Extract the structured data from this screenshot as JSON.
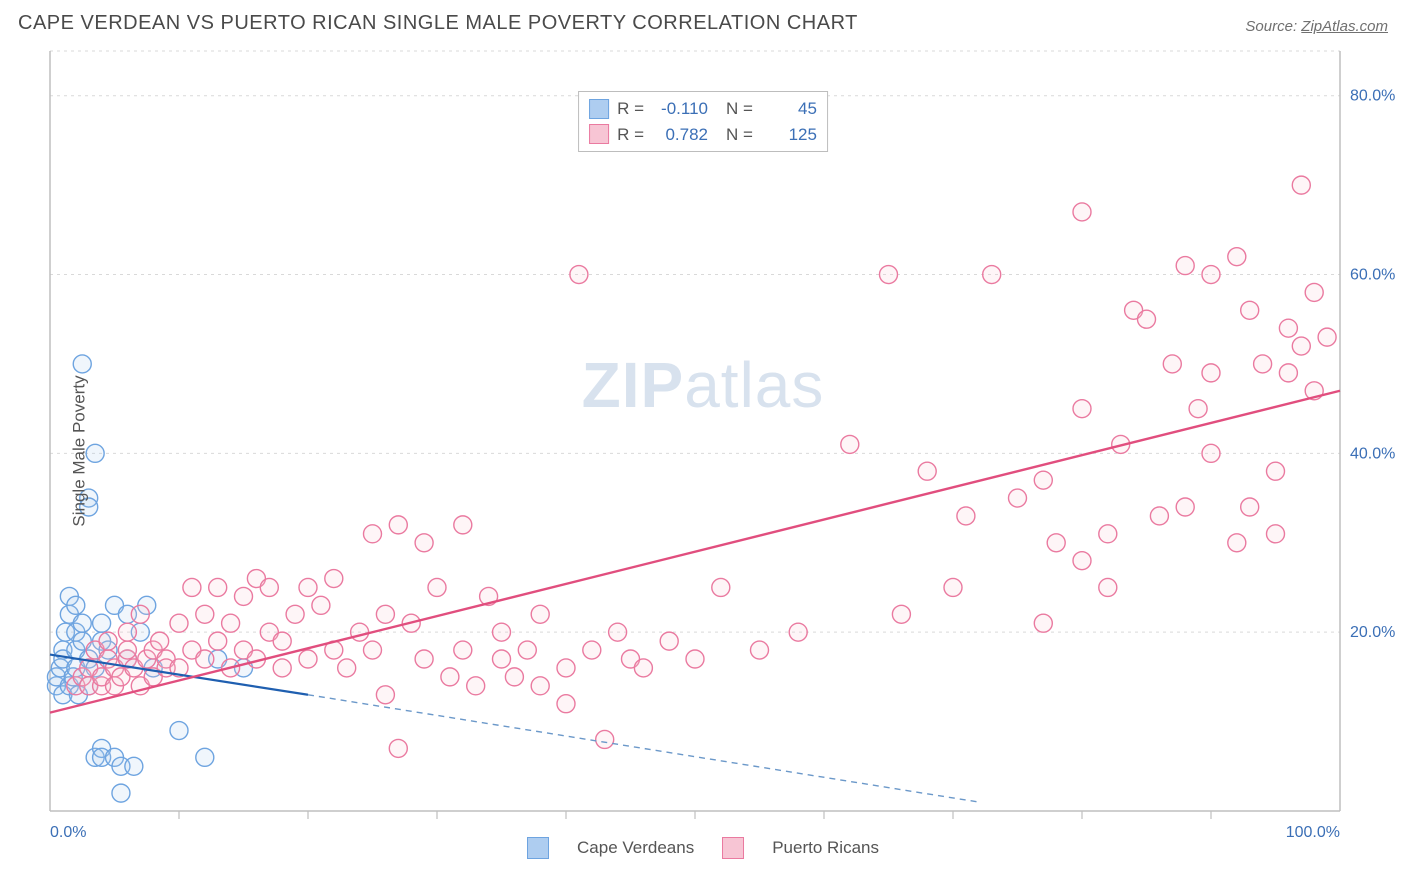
{
  "title": "CAPE VERDEAN VS PUERTO RICAN SINGLE MALE POVERTY CORRELATION CHART",
  "source_prefix": "Source: ",
  "source_name": "ZipAtlas.com",
  "ylabel": "Single Male Poverty",
  "watermark_bold": "ZIP",
  "watermark_light": "atlas",
  "chart": {
    "type": "scatter",
    "xlim": [
      0,
      100
    ],
    "ylim": [
      0,
      85
    ],
    "xtick_labels": {
      "0": "0.0%",
      "100": "100.0%"
    },
    "ytick_values": [
      20,
      40,
      60,
      80
    ],
    "ytick_labels": [
      "20.0%",
      "40.0%",
      "60.0%",
      "80.0%"
    ],
    "xtick_minor": [
      10,
      20,
      30,
      40,
      50,
      60,
      70,
      80,
      90
    ],
    "grid_y": [
      20,
      40,
      60,
      80
    ],
    "grid_top": 85,
    "background_color": "#ffffff",
    "grid_color": "#d9d9d9",
    "axis_color": "#bfbfbf",
    "tick_label_color": "#3b6fb6",
    "marker_radius": 9,
    "marker_stroke_width": 1.4,
    "marker_fill_opacity": 0.18
  },
  "series": [
    {
      "key": "cape_verdeans",
      "label": "Cape Verdeans",
      "color_stroke": "#6ea4e0",
      "color_fill": "#aecdf0",
      "stats": {
        "R": "-0.110",
        "N": "45"
      },
      "trend": {
        "x1": 0,
        "y1": 17.5,
        "x2": 20,
        "y2": 13,
        "ext_x2": 72,
        "ext_y2": 1,
        "solid_color": "#1f5fb0",
        "solid_width": 2.2,
        "dash_color": "#6b98c9",
        "dash_width": 1.4,
        "dash": "6,5"
      },
      "points": [
        [
          0.5,
          14
        ],
        [
          0.5,
          15
        ],
        [
          0.8,
          16
        ],
        [
          1,
          13
        ],
        [
          1,
          18
        ],
        [
          1,
          17
        ],
        [
          1.2,
          20
        ],
        [
          1.5,
          22
        ],
        [
          1.5,
          14
        ],
        [
          1.5,
          24
        ],
        [
          1.8,
          15
        ],
        [
          2,
          18
        ],
        [
          2,
          20
        ],
        [
          2,
          16
        ],
        [
          2,
          23
        ],
        [
          2.2,
          13
        ],
        [
          2.5,
          19
        ],
        [
          2.5,
          21
        ],
        [
          2.5,
          50
        ],
        [
          3,
          14
        ],
        [
          3,
          35
        ],
        [
          3,
          34
        ],
        [
          3,
          17
        ],
        [
          3.5,
          16
        ],
        [
          3.5,
          6
        ],
        [
          3.5,
          40
        ],
        [
          4,
          7
        ],
        [
          4,
          6
        ],
        [
          4,
          21
        ],
        [
          4,
          19
        ],
        [
          4.5,
          18
        ],
        [
          5,
          23
        ],
        [
          5,
          6
        ],
        [
          5.5,
          5
        ],
        [
          5.5,
          2
        ],
        [
          6,
          22
        ],
        [
          6,
          17
        ],
        [
          6.5,
          5
        ],
        [
          7,
          20
        ],
        [
          7.5,
          23
        ],
        [
          8,
          16
        ],
        [
          10,
          9
        ],
        [
          12,
          6
        ],
        [
          13,
          17
        ],
        [
          15,
          16
        ]
      ]
    },
    {
      "key": "puerto_ricans",
      "label": "Puerto Ricans",
      "color_stroke": "#ea7aa0",
      "color_fill": "#f7c5d4",
      "stats": {
        "R": "0.782",
        "N": "125"
      },
      "trend": {
        "x1": 0,
        "y1": 11,
        "x2": 100,
        "y2": 47,
        "solid_color": "#e14e7e",
        "solid_width": 2.4
      },
      "points": [
        [
          2,
          14
        ],
        [
          2.5,
          15
        ],
        [
          3,
          16
        ],
        [
          3,
          14
        ],
        [
          3.5,
          18
        ],
        [
          4,
          14
        ],
        [
          4,
          15
        ],
        [
          4.5,
          17
        ],
        [
          4.5,
          19
        ],
        [
          5,
          16
        ],
        [
          5,
          14
        ],
        [
          5.5,
          15
        ],
        [
          6,
          17
        ],
        [
          6,
          18
        ],
        [
          6,
          20
        ],
        [
          6.5,
          16
        ],
        [
          7,
          14
        ],
        [
          7,
          22
        ],
        [
          7.5,
          17
        ],
        [
          8,
          15
        ],
        [
          8,
          18
        ],
        [
          8.5,
          19
        ],
        [
          9,
          17
        ],
        [
          9,
          16
        ],
        [
          10,
          16
        ],
        [
          10,
          21
        ],
        [
          11,
          25
        ],
        [
          11,
          18
        ],
        [
          12,
          17
        ],
        [
          12,
          22
        ],
        [
          13,
          25
        ],
        [
          13,
          19
        ],
        [
          14,
          16
        ],
        [
          14,
          21
        ],
        [
          15,
          18
        ],
        [
          15,
          24
        ],
        [
          16,
          26
        ],
        [
          16,
          17
        ],
        [
          17,
          20
        ],
        [
          17,
          25
        ],
        [
          18,
          19
        ],
        [
          18,
          16
        ],
        [
          19,
          22
        ],
        [
          20,
          17
        ],
        [
          20,
          25
        ],
        [
          21,
          23
        ],
        [
          22,
          18
        ],
        [
          22,
          26
        ],
        [
          23,
          16
        ],
        [
          24,
          20
        ],
        [
          25,
          31
        ],
        [
          25,
          18
        ],
        [
          26,
          13
        ],
        [
          26,
          22
        ],
        [
          27,
          32
        ],
        [
          27,
          7
        ],
        [
          28,
          21
        ],
        [
          29,
          17
        ],
        [
          29,
          30
        ],
        [
          30,
          25
        ],
        [
          31,
          15
        ],
        [
          32,
          32
        ],
        [
          32,
          18
        ],
        [
          33,
          14
        ],
        [
          34,
          24
        ],
        [
          35,
          17
        ],
        [
          35,
          20
        ],
        [
          36,
          15
        ],
        [
          37,
          18
        ],
        [
          38,
          22
        ],
        [
          38,
          14
        ],
        [
          40,
          16
        ],
        [
          40,
          12
        ],
        [
          41,
          60
        ],
        [
          42,
          18
        ],
        [
          43,
          8
        ],
        [
          44,
          20
        ],
        [
          45,
          17
        ],
        [
          46,
          16
        ],
        [
          48,
          19
        ],
        [
          50,
          17
        ],
        [
          52,
          25
        ],
        [
          55,
          18
        ],
        [
          58,
          20
        ],
        [
          62,
          41
        ],
        [
          65,
          60
        ],
        [
          66,
          22
        ],
        [
          68,
          38
        ],
        [
          70,
          25
        ],
        [
          71,
          33
        ],
        [
          73,
          60
        ],
        [
          75,
          35
        ],
        [
          77,
          21
        ],
        [
          77,
          37
        ],
        [
          78,
          30
        ],
        [
          80,
          28
        ],
        [
          80,
          67
        ],
        [
          80,
          45
        ],
        [
          82,
          31
        ],
        [
          82,
          25
        ],
        [
          83,
          41
        ],
        [
          84,
          56
        ],
        [
          85,
          55
        ],
        [
          86,
          33
        ],
        [
          87,
          50
        ],
        [
          88,
          61
        ],
        [
          88,
          34
        ],
        [
          89,
          45
        ],
        [
          90,
          60
        ],
        [
          90,
          49
        ],
        [
          90,
          40
        ],
        [
          92,
          30
        ],
        [
          92,
          62
        ],
        [
          93,
          56
        ],
        [
          93,
          34
        ],
        [
          94,
          50
        ],
        [
          95,
          38
        ],
        [
          95,
          31
        ],
        [
          96,
          54
        ],
        [
          96,
          49
        ],
        [
          97,
          70
        ],
        [
          97,
          52
        ],
        [
          98,
          47
        ],
        [
          98,
          58
        ],
        [
          99,
          53
        ]
      ]
    }
  ],
  "legend": [
    {
      "label": "Cape Verdeans",
      "stroke": "#6ea4e0",
      "fill": "#aecdf0"
    },
    {
      "label": "Puerto Ricans",
      "stroke": "#ea7aa0",
      "fill": "#f7c5d4"
    }
  ]
}
